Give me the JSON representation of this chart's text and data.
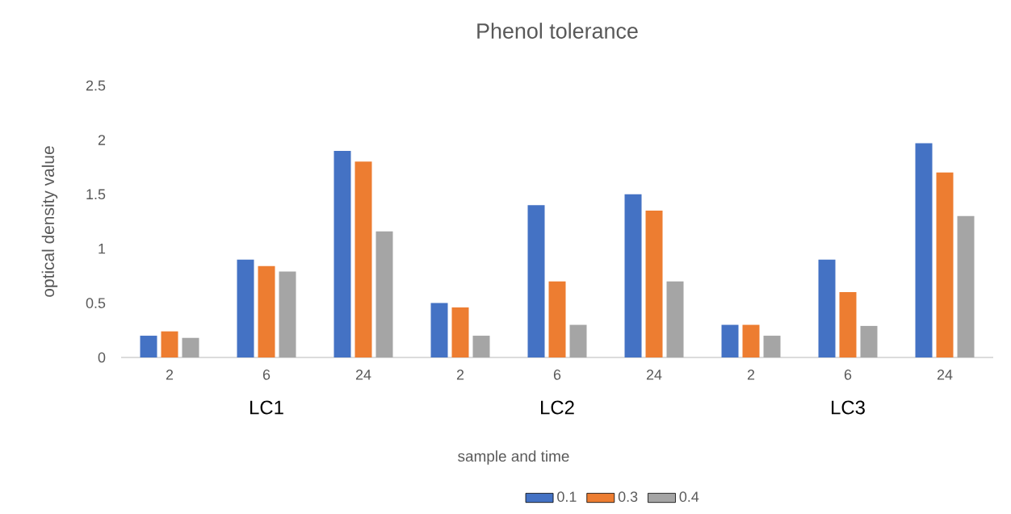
{
  "chart_data": {
    "type": "bar",
    "title": "Phenol tolerance",
    "xlabel": "sample and time",
    "ylabel": "optical density value",
    "categories": [
      "2",
      "6",
      "24",
      "2",
      "6",
      "24",
      "2",
      "6",
      "24"
    ],
    "annotations": [
      "LC1",
      "LC2",
      "LC3"
    ],
    "series": [
      {
        "name": "0.1",
        "color": "#4472c4",
        "values": [
          0.2,
          0.9,
          1.9,
          0.5,
          1.4,
          1.5,
          0.3,
          0.9,
          1.97
        ]
      },
      {
        "name": "0.3",
        "color": "#ed7d31",
        "values": [
          0.24,
          0.84,
          1.8,
          0.46,
          0.7,
          1.35,
          0.3,
          0.6,
          1.7
        ]
      },
      {
        "name": "0.4",
        "color": "#a5a5a5",
        "values": [
          0.18,
          0.79,
          1.16,
          0.2,
          0.3,
          0.7,
          0.2,
          0.29,
          1.3
        ]
      }
    ],
    "ylim": [
      0,
      2.5
    ],
    "yticks": [
      0,
      0.5,
      1,
      1.5,
      2,
      2.5
    ],
    "legend": "bottom"
  }
}
